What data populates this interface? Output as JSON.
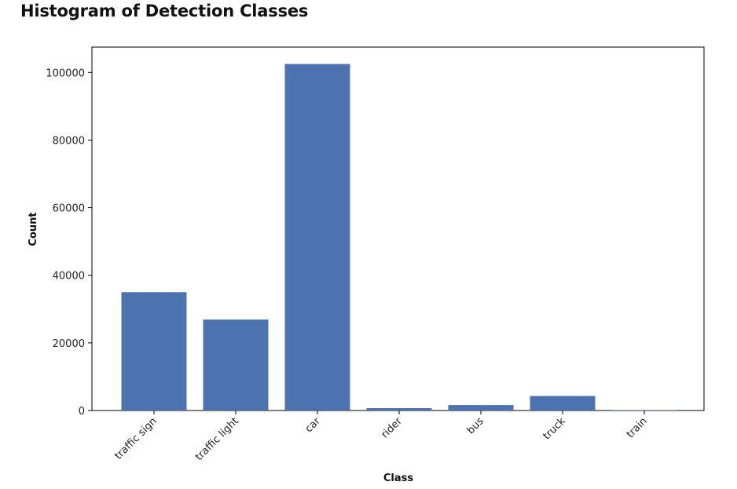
{
  "page": {
    "title": "Histogram of Detection Classes"
  },
  "chart_data": {
    "type": "bar",
    "title": "Histogram of Detection Classes",
    "xlabel": "Class",
    "ylabel": "Count",
    "categories": [
      "traffic sign",
      "traffic light",
      "car",
      "rider",
      "bus",
      "truck",
      "train"
    ],
    "values": [
      35000,
      26900,
      102500,
      700,
      1600,
      4300,
      100
    ],
    "ylim": [
      0,
      107500
    ],
    "yticks": [
      0,
      20000,
      40000,
      60000,
      80000,
      100000
    ],
    "ytick_labels": [
      "0",
      "20000",
      "40000",
      "60000",
      "80000",
      "100000"
    ],
    "bar_color": "#4c72b0",
    "grid": false,
    "legend": "none"
  }
}
